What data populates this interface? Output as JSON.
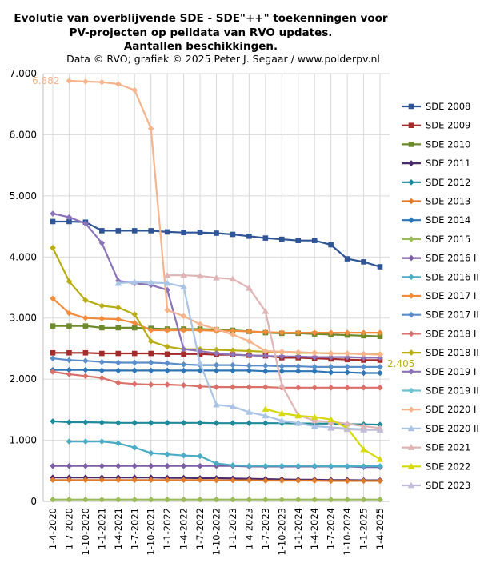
{
  "chart_data": {
    "type": "line",
    "title_lines": [
      "Evolutie van overblijvende SDE - SDE\"++\"  toekenningen  voor",
      "PV-projecten op peildata van RVO updates.",
      "Aantallen beschikkingen."
    ],
    "subtitle": "Data © RVO; grafiek © 2025 Peter J. Segaar / www.polderpv.nl",
    "xlabel": "",
    "ylabel": "",
    "ylim": [
      0,
      7000
    ],
    "y_ticks": [
      0,
      1000,
      2000,
      3000,
      4000,
      5000,
      6000,
      7000
    ],
    "y_tick_labels": [
      "0",
      "1.000",
      "2.000",
      "3.000",
      "4.000",
      "5.000",
      "6.000",
      "7.000"
    ],
    "x_labels": [
      "1-4-2020",
      "1-7-2020",
      "1-10-2020",
      "1-1-2021",
      "1-4-2021",
      "1-7-2021",
      "1-10-2021",
      "1-1-2022",
      "1-4-2022",
      "1-7-2022",
      "1-10-2022",
      "1-1-2023",
      "1-4-2023",
      "1-7-2023",
      "1-10-2023",
      "1-1-2024",
      "1-4-2024",
      "1-7-2024",
      "1-10-2024",
      "1-1-2025",
      "1-4-2025"
    ],
    "grid": true,
    "legend_position": "right",
    "annotations": [
      {
        "text": "6.882",
        "series": "SDE 2020 I",
        "index": 1,
        "color": "#f5b48c"
      },
      {
        "text": "2.405",
        "series": "SDE 2018 II",
        "index": 20,
        "color": "#b8ae14"
      }
    ],
    "series": [
      {
        "name": "SDE 2008",
        "color": "#2f5597",
        "marker": "square",
        "values": [
          4580,
          4580,
          4570,
          4430,
          4430,
          4430,
          4430,
          4410,
          4400,
          4400,
          4390,
          4370,
          4340,
          4310,
          4290,
          4270,
          4270,
          4200,
          3970,
          3920,
          3840
        ]
      },
      {
        "name": "SDE 2009",
        "color": "#a52a2a",
        "marker": "square",
        "values": [
          2430,
          2430,
          2430,
          2420,
          2420,
          2420,
          2420,
          2410,
          2410,
          2410,
          2400,
          2400,
          2390,
          2380,
          2350,
          2350,
          2340,
          2330,
          2320,
          2310,
          2310
        ]
      },
      {
        "name": "SDE 2010",
        "color": "#6e8b2b",
        "marker": "square",
        "values": [
          2870,
          2870,
          2870,
          2840,
          2840,
          2840,
          2830,
          2820,
          2820,
          2820,
          2810,
          2800,
          2780,
          2760,
          2750,
          2750,
          2740,
          2730,
          2720,
          2710,
          2700
        ]
      },
      {
        "name": "SDE 2011",
        "color": "#4b2a6e",
        "marker": "diamond",
        "values": [
          390,
          390,
          390,
          390,
          390,
          390,
          390,
          385,
          385,
          380,
          380,
          375,
          370,
          365,
          360,
          355,
          355,
          350,
          350,
          345,
          345
        ]
      },
      {
        "name": "SDE 2012",
        "color": "#1f8a9a",
        "marker": "diamond",
        "values": [
          1310,
          1295,
          1295,
          1290,
          1285,
          1285,
          1285,
          1285,
          1285,
          1285,
          1280,
          1280,
          1280,
          1280,
          1280,
          1275,
          1275,
          1270,
          1265,
          1260,
          1255
        ]
      },
      {
        "name": "SDE 2013",
        "color": "#e07b2a",
        "marker": "diamond",
        "values": [
          350,
          350,
          350,
          350,
          350,
          350,
          350,
          350,
          350,
          350,
          345,
          345,
          345,
          340,
          340,
          340,
          340,
          335,
          335,
          335,
          335
        ]
      },
      {
        "name": "SDE 2014",
        "color": "#2e75b6",
        "marker": "diamond",
        "values": [
          2150,
          2150,
          2150,
          2140,
          2140,
          2140,
          2140,
          2140,
          2140,
          2140,
          2140,
          2140,
          2140,
          2130,
          2130,
          2130,
          2130,
          2110,
          2110,
          2100,
          2100
        ]
      },
      {
        "name": "SDE 2015",
        "color": "#9bbb59",
        "marker": "diamond",
        "values": [
          30,
          30,
          30,
          30,
          30,
          30,
          30,
          30,
          30,
          30,
          30,
          30,
          30,
          30,
          30,
          30,
          30,
          30,
          30,
          30,
          30
        ]
      },
      {
        "name": "SDE 2016 I",
        "color": "#7b5ca6",
        "marker": "diamond",
        "values": [
          580,
          580,
          580,
          580,
          580,
          580,
          580,
          580,
          580,
          580,
          580,
          580,
          570,
          570,
          570,
          570,
          570,
          570,
          570,
          560,
          560
        ]
      },
      {
        "name": "SDE 2016 II",
        "color": "#4bacc6",
        "marker": "diamond",
        "values": [
          null,
          980,
          980,
          980,
          950,
          880,
          790,
          770,
          750,
          740,
          620,
          590,
          580,
          580,
          580,
          580,
          580,
          575,
          575,
          575,
          575
        ]
      },
      {
        "name": "SDE 2017 I",
        "color": "#f28c3c",
        "marker": "diamond",
        "values": [
          3320,
          3080,
          3000,
          2990,
          2980,
          2920,
          2800,
          2800,
          2800,
          2800,
          2790,
          2790,
          2780,
          2770,
          2760,
          2760,
          2760,
          2760,
          2760,
          2760,
          2760
        ]
      },
      {
        "name": "SDE 2017 II",
        "color": "#5b8ec9",
        "marker": "diamond",
        "values": [
          2340,
          2310,
          2300,
          2280,
          2270,
          2270,
          2270,
          2260,
          2240,
          2230,
          2230,
          2230,
          2220,
          2220,
          2210,
          2210,
          2200,
          2200,
          2200,
          2200,
          2200
        ]
      },
      {
        "name": "SDE 2018 I",
        "color": "#d9706a",
        "marker": "diamond",
        "values": [
          2120,
          2080,
          2050,
          2020,
          1940,
          1920,
          1910,
          1910,
          1900,
          1880,
          1870,
          1870,
          1870,
          1870,
          1860,
          1860,
          1860,
          1860,
          1860,
          1860,
          1860
        ]
      },
      {
        "name": "SDE 2018 II",
        "color": "#b8ae14",
        "marker": "diamond",
        "values": [
          4150,
          3600,
          3290,
          3200,
          3170,
          3060,
          2620,
          2530,
          2490,
          2490,
          2480,
          2470,
          2460,
          2450,
          2440,
          2430,
          2430,
          2420,
          2420,
          2410,
          2405
        ]
      },
      {
        "name": "SDE 2019 I",
        "color": "#8c73b8",
        "marker": "diamond",
        "values": [
          4710,
          4650,
          4550,
          4230,
          3610,
          3570,
          3540,
          3460,
          2490,
          2460,
          2420,
          2400,
          2390,
          2380,
          2370,
          2370,
          2360,
          2360,
          2360,
          2350,
          2350
        ]
      },
      {
        "name": "SDE 2019 II",
        "color": "#6cc3d3",
        "marker": "diamond",
        "values": [
          null,
          null,
          null,
          null,
          null,
          null,
          null,
          null,
          null,
          null,
          null,
          null,
          null,
          null,
          null,
          null,
          null,
          null,
          null,
          null,
          null
        ]
      },
      {
        "name": "SDE 2020 I",
        "color": "#f5b48c",
        "marker": "diamond",
        "values": [
          null,
          6882,
          6870,
          6860,
          6830,
          6730,
          6100,
          3130,
          3030,
          2900,
          2820,
          2730,
          2620,
          2460,
          2450,
          2440,
          2430,
          2420,
          2420,
          2410,
          2400
        ]
      },
      {
        "name": "SDE 2020 II",
        "color": "#a9c4e4",
        "marker": "triangle",
        "values": [
          null,
          null,
          null,
          null,
          3570,
          3590,
          3580,
          3570,
          3510,
          2260,
          1580,
          1550,
          1460,
          1400,
          1320,
          1280,
          1230,
          1210,
          1190,
          1180,
          1170
        ]
      },
      {
        "name": "SDE 2021",
        "color": "#dfb4b4",
        "marker": "triangle",
        "values": [
          null,
          null,
          null,
          null,
          null,
          null,
          null,
          3700,
          3700,
          3690,
          3660,
          3640,
          3490,
          3110,
          1900,
          1410,
          1320,
          1300,
          1270,
          1230,
          1200
        ]
      },
      {
        "name": "SDE 2022",
        "color": "#d6d90e",
        "marker": "triangle",
        "values": [
          null,
          null,
          null,
          null,
          null,
          null,
          null,
          null,
          null,
          null,
          null,
          null,
          null,
          1510,
          1440,
          1400,
          1380,
          1340,
          1200,
          850,
          690
        ]
      },
      {
        "name": "SDE 2023",
        "color": "#c3bcd9",
        "marker": "triangle",
        "values": [
          null,
          null,
          null,
          null,
          null,
          null,
          null,
          null,
          null,
          null,
          null,
          null,
          null,
          null,
          null,
          null,
          null,
          1200,
          1180,
          1170,
          1170
        ]
      }
    ]
  }
}
